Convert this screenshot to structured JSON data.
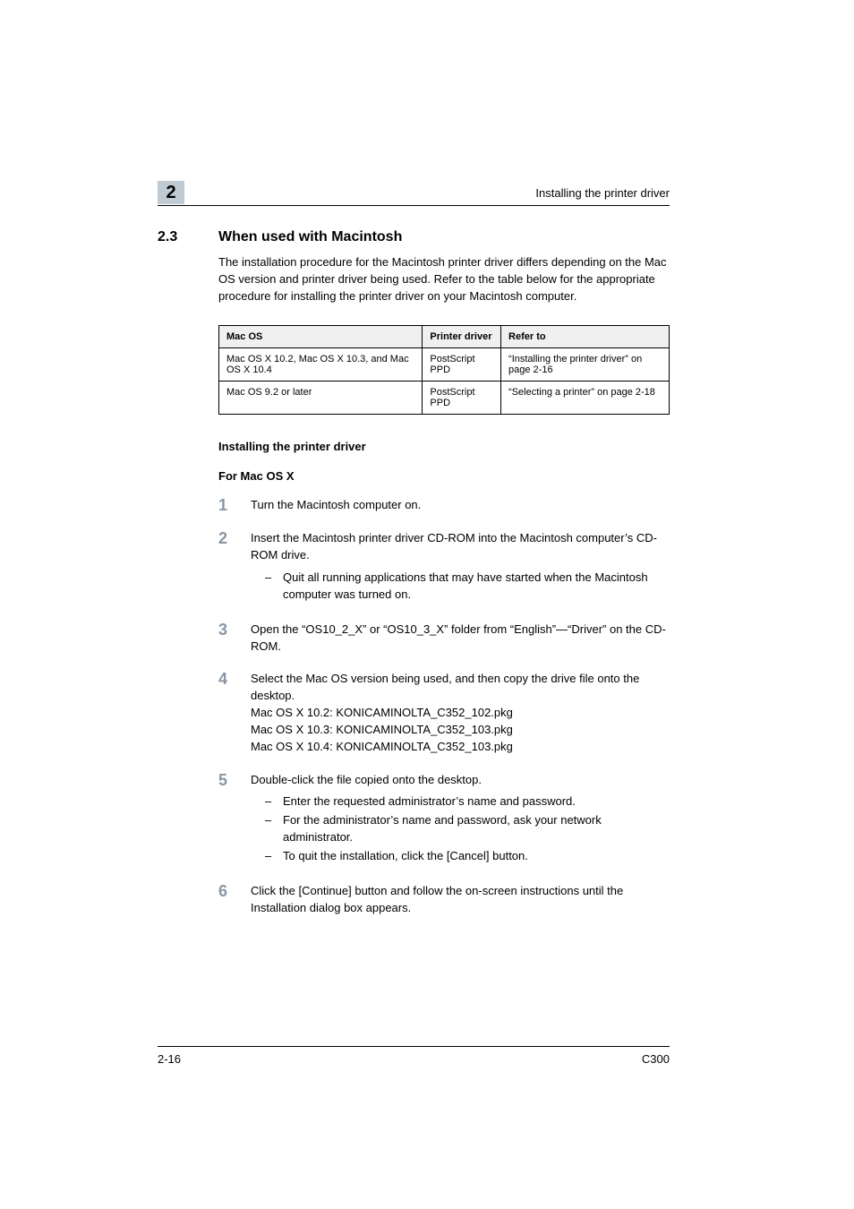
{
  "header": {
    "running_title": "Installing the printer driver",
    "chapter_badge": "2"
  },
  "section": {
    "number": "2.3",
    "title": "When used with Macintosh",
    "intro": "The installation procedure for the Macintosh printer driver differs depending on the Mac OS version and printer driver being used. Refer to the table below for the appropriate procedure for installing the printer driver on your Macintosh computer."
  },
  "table": {
    "headers": [
      "Mac OS",
      "Printer driver",
      "Refer to"
    ],
    "rows": [
      [
        "Mac OS X 10.2, Mac OS X 10.3, and Mac OS X 10.4",
        "PostScript PPD",
        "“Installing the printer driver” on page 2-16"
      ],
      [
        "Mac OS 9.2 or later",
        "PostScript PPD",
        "“Selecting a printer” on page 2-18"
      ]
    ]
  },
  "subhead1": "Installing the printer driver",
  "subhead2": "For Mac OS X",
  "steps": [
    {
      "n": "1",
      "text": "Turn the Macintosh computer on.",
      "subs": []
    },
    {
      "n": "2",
      "text": "Insert the Macintosh printer driver CD-ROM into the Macintosh computer’s CD-ROM drive.",
      "subs": [
        "Quit all running applications that may have started when the Macintosh computer was turned on."
      ]
    },
    {
      "n": "3",
      "text": "Open the “OS10_2_X” or “OS10_3_X” folder from “English”—“Driver” on the CD-ROM.",
      "subs": []
    },
    {
      "n": "4",
      "text": "Select the Mac OS version being used, and then copy the drive file onto the desktop.\nMac OS X 10.2: KONICAMINOLTA_C352_102.pkg\nMac OS X 10.3: KONICAMINOLTA_C352_103.pkg\nMac OS X 10.4: KONICAMINOLTA_C352_103.pkg",
      "subs": []
    },
    {
      "n": "5",
      "text": "Double-click the file copied onto the desktop.",
      "subs": [
        "Enter the requested administrator’s name and password.",
        "For the administrator’s name and password, ask your network administrator.",
        "To quit the installation, click the [Cancel] button."
      ]
    },
    {
      "n": "6",
      "text": "Click the [Continue] button and follow the on-screen instructions until the Installation dialog box appears.",
      "subs": []
    }
  ],
  "footer": {
    "left": "2-16",
    "right": "C300"
  }
}
